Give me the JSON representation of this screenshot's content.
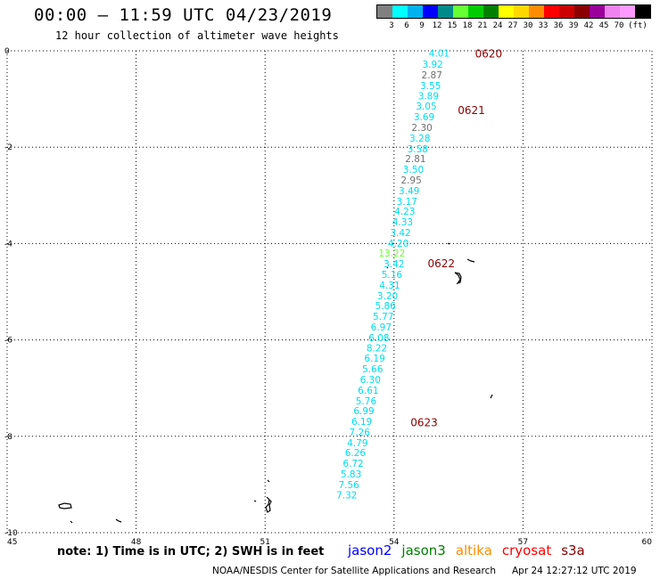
{
  "header": {
    "title": "00:00 — 11:59 UTC 04/23/2019",
    "subtitle": "12 hour collection of altimeter wave heights"
  },
  "legend": {
    "colors": [
      "#808080",
      "#00ffff",
      "#00b2ee",
      "#0000ff",
      "#008b8b",
      "#66ff33",
      "#00cc00",
      "#008000",
      "#ffff00",
      "#ffd700",
      "#ff8c00",
      "#ff0000",
      "#cc0000",
      "#8b0000",
      "#990099",
      "#ee82ee",
      "#ff99ff",
      "#000000"
    ],
    "labels": [
      "3",
      "6",
      "9",
      "12",
      "15",
      "18",
      "21",
      "24",
      "27",
      "30",
      "33",
      "36",
      "39",
      "42",
      "45",
      "70",
      "(ft)"
    ]
  },
  "chart_data": {
    "type": "scatter",
    "xlim": [
      45,
      60
    ],
    "ylim": [
      -10,
      0
    ],
    "x_ticks": [
      "45",
      "48",
      "51",
      "54",
      "57",
      "60"
    ],
    "y_ticks": [
      "0",
      "-2",
      "-4",
      "-6",
      "-8",
      "-10"
    ],
    "grid": true,
    "points": [
      {
        "lon": 55.05,
        "lat": -0.05,
        "value": "4.01",
        "color": "#00ddee"
      },
      {
        "lon": 54.9,
        "lat": -0.28,
        "value": "3.92",
        "color": "#00ddee"
      },
      {
        "lon": 54.88,
        "lat": -0.5,
        "value": "2.87",
        "color": "#707070"
      },
      {
        "lon": 54.85,
        "lat": -0.72,
        "value": "3.55",
        "color": "#00ddee"
      },
      {
        "lon": 54.8,
        "lat": -0.93,
        "value": "3.89",
        "color": "#00ddee"
      },
      {
        "lon": 54.75,
        "lat": -1.15,
        "value": "3.05",
        "color": "#00ddee"
      },
      {
        "lon": 54.7,
        "lat": -1.37,
        "value": "3.69",
        "color": "#00ddee"
      },
      {
        "lon": 54.65,
        "lat": -1.59,
        "value": "2.30",
        "color": "#707070"
      },
      {
        "lon": 54.6,
        "lat": -1.81,
        "value": "3.28",
        "color": "#00ddee"
      },
      {
        "lon": 54.55,
        "lat": -2.03,
        "value": "3.58",
        "color": "#00ddee"
      },
      {
        "lon": 54.5,
        "lat": -2.24,
        "value": "2.81",
        "color": "#707070"
      },
      {
        "lon": 54.45,
        "lat": -2.46,
        "value": "3.50",
        "color": "#00ddee"
      },
      {
        "lon": 54.4,
        "lat": -2.68,
        "value": "2.95",
        "color": "#707070"
      },
      {
        "lon": 54.35,
        "lat": -2.9,
        "value": "3.49",
        "color": "#00ddee"
      },
      {
        "lon": 54.3,
        "lat": -3.12,
        "value": "3.17",
        "color": "#00ddee"
      },
      {
        "lon": 54.25,
        "lat": -3.33,
        "value": "4.23",
        "color": "#00ddee"
      },
      {
        "lon": 54.2,
        "lat": -3.55,
        "value": "4.33",
        "color": "#00ddee"
      },
      {
        "lon": 54.15,
        "lat": -3.77,
        "value": "3.42",
        "color": "#00ddee"
      },
      {
        "lon": 54.1,
        "lat": -3.99,
        "value": "4.20",
        "color": "#00ddee"
      },
      {
        "lon": 53.95,
        "lat": -4.2,
        "value": "13.22",
        "color": "#66ff33"
      },
      {
        "lon": 54.0,
        "lat": -4.42,
        "value": "3.42",
        "color": "#00ddee"
      },
      {
        "lon": 53.95,
        "lat": -4.64,
        "value": "5.16",
        "color": "#00ddee"
      },
      {
        "lon": 53.9,
        "lat": -4.86,
        "value": "4.31",
        "color": "#00ddee"
      },
      {
        "lon": 53.85,
        "lat": -5.08,
        "value": "3.20",
        "color": "#00ddee"
      },
      {
        "lon": 53.8,
        "lat": -5.29,
        "value": "5.86",
        "color": "#00ddee"
      },
      {
        "lon": 53.75,
        "lat": -5.51,
        "value": "5.77",
        "color": "#00ddee"
      },
      {
        "lon": 53.7,
        "lat": -5.73,
        "value": "6.97",
        "color": "#00ddee"
      },
      {
        "lon": 53.65,
        "lat": -5.95,
        "value": "6.08",
        "color": "#00ddee"
      },
      {
        "lon": 53.6,
        "lat": -6.16,
        "value": "8.22",
        "color": "#00ddee"
      },
      {
        "lon": 53.55,
        "lat": -6.38,
        "value": "6.19",
        "color": "#00ddee"
      },
      {
        "lon": 53.5,
        "lat": -6.6,
        "value": "5.66",
        "color": "#00ddee"
      },
      {
        "lon": 53.45,
        "lat": -6.82,
        "value": "6.30",
        "color": "#00ddee"
      },
      {
        "lon": 53.4,
        "lat": -7.04,
        "value": "6.61",
        "color": "#00ddee"
      },
      {
        "lon": 53.35,
        "lat": -7.26,
        "value": "5.76",
        "color": "#00ddee"
      },
      {
        "lon": 53.3,
        "lat": -7.47,
        "value": "6.99",
        "color": "#00ddee"
      },
      {
        "lon": 53.25,
        "lat": -7.69,
        "value": "6.19",
        "color": "#00ddee"
      },
      {
        "lon": 53.2,
        "lat": -7.91,
        "value": "7.26",
        "color": "#00ddee"
      },
      {
        "lon": 53.15,
        "lat": -8.13,
        "value": "4.79",
        "color": "#00ddee"
      },
      {
        "lon": 53.1,
        "lat": -8.34,
        "value": "6.26",
        "color": "#00ddee"
      },
      {
        "lon": 53.05,
        "lat": -8.56,
        "value": "6.72",
        "color": "#00ddee"
      },
      {
        "lon": 53.0,
        "lat": -8.78,
        "value": "5.83",
        "color": "#00ddee"
      },
      {
        "lon": 52.95,
        "lat": -9.0,
        "value": "7.56",
        "color": "#00ddee"
      },
      {
        "lon": 52.9,
        "lat": -9.21,
        "value": "7.32",
        "color": "#00ddee"
      }
    ],
    "time_labels": [
      {
        "lon": 56.2,
        "lat": -0.05,
        "text": "0620"
      },
      {
        "lon": 55.8,
        "lat": -1.22,
        "text": "0621"
      },
      {
        "lon": 55.1,
        "lat": -4.4,
        "text": "0622"
      },
      {
        "lon": 54.7,
        "lat": -7.7,
        "text": "0623"
      }
    ]
  },
  "footer": {
    "note": "note: 1) Time is in UTC; 2) SWH is in feet",
    "satellites": [
      {
        "name": "jason2",
        "color": "#0000ff"
      },
      {
        "name": "jason3",
        "color": "#008000"
      },
      {
        "name": "altika",
        "color": "#ff8c00"
      },
      {
        "name": "cryosat",
        "color": "#ff0000"
      },
      {
        "name": "s3a",
        "color": "#8b0000"
      }
    ],
    "credit": "NOAA/NESDIS Center for Satellite Applications and Research",
    "timestamp": "Apr 24 12:27:12 UTC 2019"
  }
}
